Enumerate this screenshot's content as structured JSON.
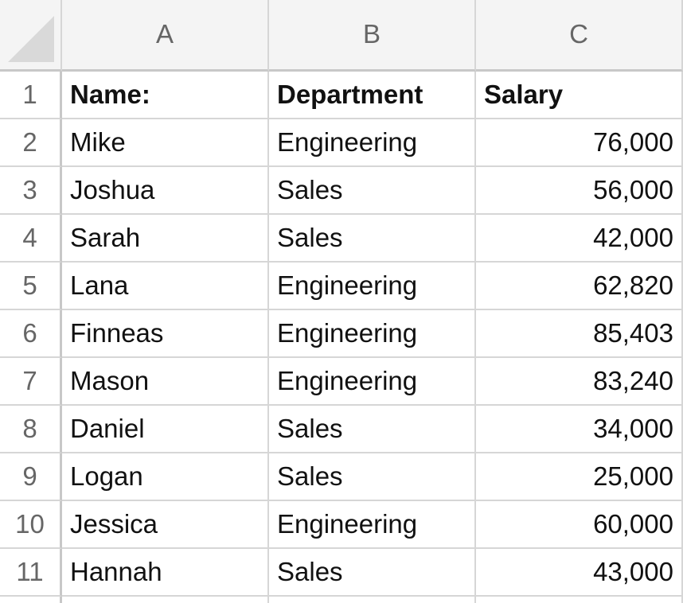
{
  "columns": [
    "A",
    "B",
    "C"
  ],
  "rows": [
    {
      "number": 1,
      "cells": [
        "Name:",
        "Department",
        "Salary"
      ]
    },
    {
      "number": 2,
      "cells": [
        "Mike",
        "Engineering",
        "76,000"
      ]
    },
    {
      "number": 3,
      "cells": [
        "Joshua",
        "Sales",
        "56,000"
      ]
    },
    {
      "number": 4,
      "cells": [
        "Sarah",
        "Sales",
        "42,000"
      ]
    },
    {
      "number": 5,
      "cells": [
        "Lana",
        "Engineering",
        "62,820"
      ]
    },
    {
      "number": 6,
      "cells": [
        "Finneas",
        "Engineering",
        "85,403"
      ]
    },
    {
      "number": 7,
      "cells": [
        "Mason",
        "Engineering",
        "83,240"
      ]
    },
    {
      "number": 8,
      "cells": [
        "Daniel",
        "Sales",
        "34,000"
      ]
    },
    {
      "number": 9,
      "cells": [
        "Logan",
        "Sales",
        "25,000"
      ]
    },
    {
      "number": 10,
      "cells": [
        "Jessica",
        "Engineering",
        "60,000"
      ]
    },
    {
      "number": 11,
      "cells": [
        "Hannah",
        "Sales",
        "43,000"
      ]
    }
  ]
}
